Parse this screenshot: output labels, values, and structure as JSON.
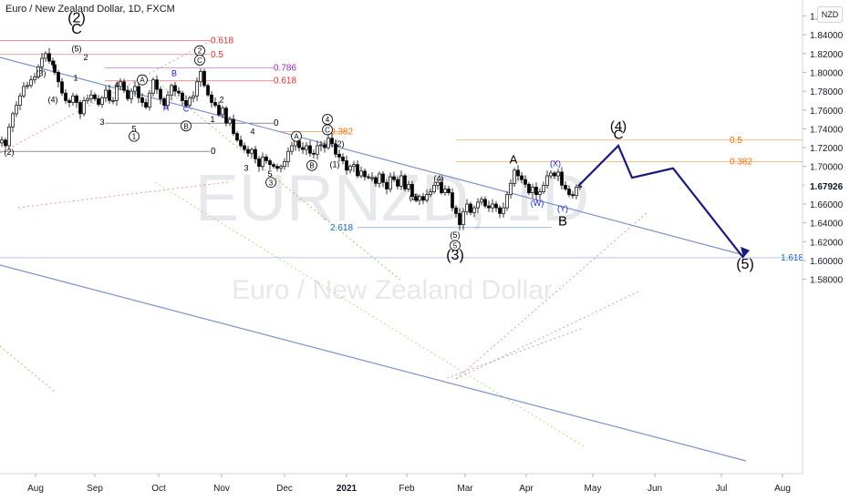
{
  "header": {
    "title": "Euro / New Zealand Dollar, 1D, FXCM"
  },
  "currency_button": "NZD",
  "watermark": {
    "symbol": "EURNZD, 1D",
    "name": "Euro / New Zealand Dollar"
  },
  "colors": {
    "up_candle": "#ffffff",
    "down_candle": "#000000",
    "channel": "#7b93cc",
    "projection": "#1b1b7a",
    "fib_red": "#d32f2f",
    "fib_orange": "#ef6c00",
    "fib_purple": "#9c27b0",
    "fib_blue": "#1565c0",
    "wave_blue": "#1a1adb"
  },
  "chart_data": {
    "type": "candlestick",
    "symbol": "EURNZD",
    "timeframe": "1D",
    "source": "FXCM",
    "y_ticks": [
      "1.86000",
      "1.84000",
      "1.82000",
      "1.80000",
      "1.78000",
      "1.76000",
      "1.74000",
      "1.72000",
      "1.70000",
      "1.68000",
      "1.66000",
      "1.64000",
      "1.62000",
      "1.60000",
      "1.58000"
    ],
    "ylim": [
      1.575,
      1.87
    ],
    "current_price": "1.67926",
    "x_ticks": [
      "Aug",
      "Sep",
      "Oct",
      "Nov",
      "Dec",
      "2021",
      "Feb",
      "Mar",
      "Apr",
      "May",
      "Jun",
      "Jul",
      "Aug"
    ],
    "price_path": [
      [
        0,
        1.728
      ],
      [
        4,
        1.722
      ],
      [
        8,
        1.742
      ],
      [
        12,
        1.756
      ],
      [
        16,
        1.765
      ],
      [
        20,
        1.775
      ],
      [
        24,
        1.785
      ],
      [
        28,
        1.786
      ],
      [
        32,
        1.792
      ],
      [
        36,
        1.795
      ],
      [
        40,
        1.806
      ],
      [
        44,
        1.815
      ],
      [
        48,
        1.82
      ],
      [
        52,
        1.812
      ],
      [
        56,
        1.808
      ],
      [
        58,
        1.8
      ],
      [
        62,
        1.79
      ],
      [
        66,
        1.778
      ],
      [
        70,
        1.77
      ],
      [
        74,
        1.768
      ],
      [
        78,
        1.775
      ],
      [
        82,
        1.768
      ],
      [
        86,
        1.756
      ],
      [
        90,
        1.77
      ],
      [
        94,
        1.772
      ],
      [
        98,
        1.776
      ],
      [
        102,
        1.772
      ],
      [
        106,
        1.766
      ],
      [
        110,
        1.773
      ],
      [
        114,
        1.781
      ],
      [
        118,
        1.77
      ],
      [
        122,
        1.77
      ],
      [
        126,
        1.785
      ],
      [
        130,
        1.79
      ],
      [
        134,
        1.781
      ],
      [
        138,
        1.772
      ],
      [
        142,
        1.78
      ],
      [
        146,
        1.785
      ],
      [
        150,
        1.773
      ],
      [
        154,
        1.768
      ],
      [
        158,
        1.763
      ],
      [
        162,
        1.778
      ],
      [
        166,
        1.792
      ],
      [
        170,
        1.782
      ],
      [
        174,
        1.772
      ],
      [
        178,
        1.765
      ],
      [
        182,
        1.776
      ],
      [
        186,
        1.786
      ],
      [
        190,
        1.78
      ],
      [
        194,
        1.778
      ],
      [
        198,
        1.77
      ],
      [
        202,
        1.765
      ],
      [
        206,
        1.773
      ],
      [
        210,
        1.775
      ],
      [
        214,
        1.79
      ],
      [
        218,
        1.801
      ],
      [
        222,
        1.786
      ],
      [
        226,
        1.776
      ],
      [
        230,
        1.768
      ],
      [
        234,
        1.765
      ],
      [
        238,
        1.755
      ],
      [
        242,
        1.762
      ],
      [
        246,
        1.746
      ],
      [
        250,
        1.75
      ],
      [
        254,
        1.735
      ],
      [
        258,
        1.728
      ],
      [
        262,
        1.722
      ],
      [
        266,
        1.718
      ],
      [
        270,
        1.714
      ],
      [
        274,
        1.718
      ],
      [
        278,
        1.708
      ],
      [
        282,
        1.7
      ],
      [
        286,
        1.71
      ],
      [
        290,
        1.706
      ],
      [
        294,
        1.702
      ],
      [
        298,
        1.7
      ],
      [
        302,
        1.698
      ],
      [
        306,
        1.7
      ],
      [
        310,
        1.705
      ],
      [
        314,
        1.716
      ],
      [
        318,
        1.722
      ],
      [
        322,
        1.727
      ],
      [
        326,
        1.72
      ],
      [
        330,
        1.718
      ],
      [
        334,
        1.722
      ],
      [
        338,
        1.714
      ],
      [
        342,
        1.713
      ],
      [
        346,
        1.722
      ],
      [
        350,
        1.723
      ],
      [
        354,
        1.72
      ],
      [
        358,
        1.73
      ],
      [
        362,
        1.724
      ],
      [
        366,
        1.713
      ],
      [
        370,
        1.71
      ],
      [
        374,
        1.706
      ],
      [
        378,
        1.696
      ],
      [
        382,
        1.7
      ],
      [
        386,
        1.702
      ],
      [
        390,
        1.69
      ],
      [
        394,
        1.695
      ],
      [
        398,
        1.689
      ],
      [
        402,
        1.688
      ],
      [
        406,
        1.688
      ],
      [
        410,
        1.682
      ],
      [
        414,
        1.692
      ],
      [
        418,
        1.683
      ],
      [
        422,
        1.676
      ],
      [
        426,
        1.689
      ],
      [
        430,
        1.686
      ],
      [
        434,
        1.679
      ],
      [
        438,
        1.69
      ],
      [
        442,
        1.676
      ],
      [
        446,
        1.681
      ],
      [
        450,
        1.668
      ],
      [
        454,
        1.664
      ],
      [
        458,
        1.668
      ],
      [
        462,
        1.664
      ],
      [
        466,
        1.67
      ],
      [
        470,
        1.673
      ],
      [
        474,
        1.68
      ],
      [
        478,
        1.683
      ],
      [
        482,
        1.672
      ],
      [
        486,
        1.676
      ],
      [
        490,
        1.672
      ],
      [
        494,
        1.656
      ],
      [
        498,
        1.65
      ],
      [
        502,
        1.638
      ],
      [
        506,
        1.652
      ],
      [
        510,
        1.66
      ],
      [
        514,
        1.651
      ],
      [
        518,
        1.656
      ],
      [
        522,
        1.662
      ],
      [
        526,
        1.665
      ],
      [
        530,
        1.658
      ],
      [
        534,
        1.656
      ],
      [
        538,
        1.66
      ],
      [
        542,
        1.656
      ],
      [
        546,
        1.65
      ],
      [
        550,
        1.656
      ],
      [
        554,
        1.67
      ],
      [
        558,
        1.682
      ],
      [
        562,
        1.696
      ],
      [
        566,
        1.69
      ],
      [
        570,
        1.686
      ],
      [
        574,
        1.681
      ],
      [
        578,
        1.672
      ],
      [
        582,
        1.678
      ],
      [
        586,
        1.67
      ],
      [
        590,
        1.673
      ],
      [
        594,
        1.68
      ],
      [
        598,
        1.69
      ],
      [
        602,
        1.693
      ],
      [
        606,
        1.69
      ],
      [
        610,
        1.694
      ],
      [
        614,
        1.68
      ],
      [
        618,
        1.676
      ],
      [
        622,
        1.67
      ],
      [
        626,
        1.669
      ],
      [
        630,
        1.678
      ],
      [
        634,
        1.679
      ]
    ],
    "annotations": {
      "fib_levels": [
        {
          "label": "0.618",
          "x": 231,
          "y": 1.834,
          "color": "#d32f2f"
        },
        {
          "label": "0.5",
          "x": 231,
          "y": 1.819,
          "color": "#d32f2f"
        },
        {
          "label": "0.786",
          "x": 300,
          "y": 1.805,
          "color": "#9c27b0"
        },
        {
          "label": "0.618",
          "x": 300,
          "y": 1.791,
          "color": "#d32f2f"
        },
        {
          "label": "0",
          "x": 300,
          "y": 1.746,
          "color": "#000000"
        },
        {
          "label": "0",
          "x": 231,
          "y": 1.716,
          "color": "#000000"
        },
        {
          "label": "0.382",
          "x": 362,
          "y": 1.737,
          "color": "#ef6c00"
        },
        {
          "label": "0.5",
          "x": 800,
          "y": 1.728,
          "color": "#ef6c00"
        },
        {
          "label": "0.382",
          "x": 800,
          "y": 1.705,
          "color": "#ef6c00"
        },
        {
          "label": "2.618",
          "x": 362,
          "y": 1.635,
          "color": "#1565c0"
        },
        {
          "label": "1.618",
          "x": 856,
          "y": 1.603,
          "color": "#1565c0"
        }
      ],
      "wave_labels": [
        {
          "text": "(2)",
          "x": 84,
          "y": 1.857,
          "size": 16
        },
        {
          "text": "C",
          "x": 84,
          "y": 1.845,
          "size": 16
        },
        {
          "text": "(5)",
          "x": 84,
          "y": 1.826
        },
        {
          "text": "2",
          "x": 94,
          "y": 1.817
        },
        {
          "text": "(3)",
          "x": 45,
          "y": 1.8
        },
        {
          "text": "(4)",
          "x": 58,
          "y": 1.772
        },
        {
          "text": "1",
          "x": 83,
          "y": 1.795
        },
        {
          "text": "4",
          "x": 128,
          "y": 1.788
        },
        {
          "text": "3",
          "x": 112,
          "y": 1.748
        },
        {
          "text": "5",
          "x": 147,
          "y": 1.741
        },
        {
          "text": "(2)",
          "x": 10,
          "y": 1.716
        },
        {
          "text": "A",
          "x": 182,
          "y": 1.763,
          "color": "#1a1adb"
        },
        {
          "text": "B",
          "x": 191,
          "y": 1.8,
          "color": "#1a1adb"
        },
        {
          "text": "C",
          "x": 204,
          "y": 1.762,
          "color": "#1a1adb"
        },
        {
          "text": "1",
          "x": 233,
          "y": 1.751
        },
        {
          "text": "2",
          "x": 243,
          "y": 1.772
        },
        {
          "text": "4",
          "x": 277,
          "y": 1.738
        },
        {
          "text": "3",
          "x": 270,
          "y": 1.699
        },
        {
          "text": "5",
          "x": 296,
          "y": 1.693
        },
        {
          "text": "(3)",
          "x": 454,
          "y": 1.668
        },
        {
          "text": "(4)",
          "x": 481,
          "y": 1.688
        },
        {
          "text": "(2)",
          "x": 372,
          "y": 1.725
        },
        {
          "text": "(1)",
          "x": 367,
          "y": 1.703
        },
        {
          "text": "(5)",
          "x": 499,
          "y": 1.628
        },
        {
          "text": "A",
          "x": 563,
          "y": 1.707,
          "size": 13
        },
        {
          "text": "(X)",
          "x": 609,
          "y": 1.704,
          "color": "#1a1adb"
        },
        {
          "text": "(W)",
          "x": 589,
          "y": 1.662,
          "color": "#1a1adb"
        },
        {
          "text": "(Y)",
          "x": 617,
          "y": 1.656,
          "color": "#1a1adb"
        },
        {
          "text": "B",
          "x": 617,
          "y": 1.641,
          "size": 15
        },
        {
          "text": "(4)",
          "x": 678,
          "y": 1.742,
          "size": 15
        },
        {
          "text": "C",
          "x": 678,
          "y": 1.733,
          "size": 15
        },
        {
          "text": "(3)",
          "x": 499,
          "y": 1.605,
          "size": 16
        },
        {
          "text": "(5)",
          "x": 817,
          "y": 1.595,
          "size": 16
        }
      ],
      "circled_labels": [
        {
          "text": "2",
          "x": 219,
          "y": 1.823
        },
        {
          "text": "C",
          "x": 219,
          "y": 1.813
        },
        {
          "text": "A",
          "x": 156,
          "y": 1.792
        },
        {
          "text": "B",
          "x": 204,
          "y": 1.743
        },
        {
          "text": "1",
          "x": 147,
          "y": 1.732
        },
        {
          "text": "4",
          "x": 359,
          "y": 1.75
        },
        {
          "text": "C",
          "x": 359,
          "y": 1.739
        },
        {
          "text": "A",
          "x": 325,
          "y": 1.732
        },
        {
          "text": "B",
          "x": 342,
          "y": 1.701
        },
        {
          "text": "3",
          "x": 297,
          "y": 1.683
        },
        {
          "text": "5",
          "x": 499,
          "y": 1.616
        }
      ],
      "projection": [
        [
          634,
          1.679
        ],
        [
          678,
          1.722
        ],
        [
          693,
          1.688
        ],
        [
          738,
          1.698
        ],
        [
          815,
          1.603
        ]
      ]
    }
  }
}
